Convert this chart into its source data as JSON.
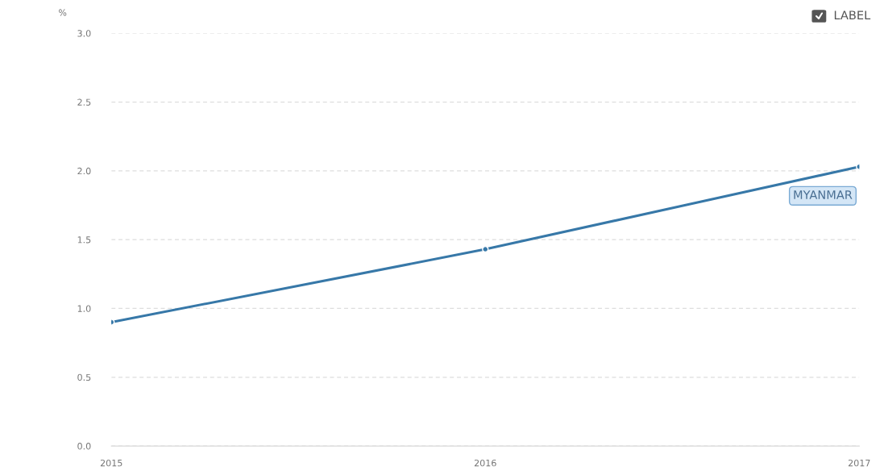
{
  "chart_data": {
    "type": "line",
    "ylabel": "%",
    "x": [
      2015,
      2016,
      2017
    ],
    "series": [
      {
        "name": "MYANMAR",
        "color": "#3778a8",
        "values": [
          0.9,
          1.43,
          2.03
        ]
      }
    ],
    "xlim": [
      2015,
      2017
    ],
    "xticks": [
      2015,
      2016,
      2017
    ],
    "ylim": [
      0,
      3.0
    ],
    "yticks": [
      {
        "value": 0,
        "label": "0.0"
      },
      {
        "value": 0.5,
        "label": "0.5"
      },
      {
        "value": 1.0,
        "label": "1.0"
      },
      {
        "value": 1.5,
        "label": "1.5"
      },
      {
        "value": 2.0,
        "label": "2.0"
      },
      {
        "value": 2.5,
        "label": "2.5"
      },
      {
        "value": 3.0,
        "label": "3.0"
      }
    ],
    "grid": "y",
    "marker": "circle",
    "line_style": "solid",
    "annotations": [
      "LABEL"
    ]
  }
}
